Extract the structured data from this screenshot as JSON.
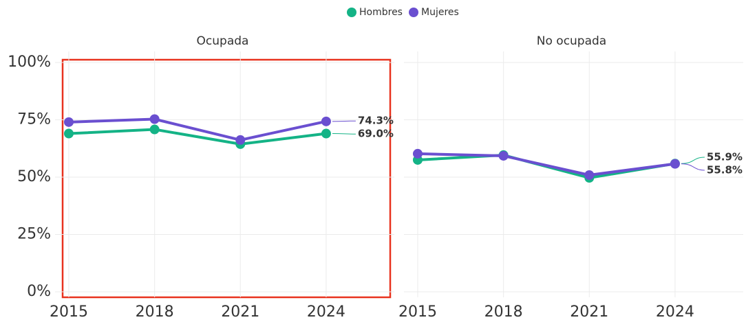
{
  "chart_data": [
    {
      "type": "line",
      "title": "Ocupada",
      "x": [
        2015,
        2018,
        2021,
        2024
      ],
      "xlim": [
        2014.76,
        2026.24
      ],
      "xticks": [
        2015,
        2018,
        2021,
        2024
      ],
      "ylim": [
        -2.4,
        101.8
      ],
      "yticks": [
        {
          "value": 0,
          "label": "0%"
        },
        {
          "value": 25,
          "label": "25%"
        },
        {
          "value": 50,
          "label": "50%"
        },
        {
          "value": 75,
          "label": "75%"
        },
        {
          "value": 100,
          "label": "100%"
        }
      ],
      "grid": true,
      "series": [
        {
          "name": "Hombres",
          "color": "#14b386",
          "values": [
            69.0,
            70.8,
            64.4,
            69.0
          ],
          "value_labels": [
            null,
            null,
            null,
            "69.0%"
          ]
        },
        {
          "name": "Mujeres",
          "color": "#6a4fd0",
          "values": [
            74.0,
            75.3,
            66.2,
            74.3
          ],
          "value_labels": [
            null,
            null,
            null,
            "74.3%"
          ]
        }
      ]
    },
    {
      "type": "line",
      "title": "No ocupada",
      "x": [
        2015,
        2018,
        2021,
        2024
      ],
      "xlim": [
        2014.76,
        2026.24
      ],
      "xticks": [
        2015,
        2018,
        2021,
        2024
      ],
      "ylim": [
        -2.4,
        101.8
      ],
      "yticks": [
        0,
        25,
        50,
        75,
        100
      ],
      "grid": true,
      "series": [
        {
          "name": "Hombres",
          "color": "#14b386",
          "values": [
            57.5,
            59.6,
            49.7,
            55.9
          ],
          "value_labels": [
            null,
            null,
            null,
            "55.9%"
          ]
        },
        {
          "name": "Mujeres",
          "color": "#6a4fd0",
          "values": [
            60.2,
            59.3,
            50.9,
            55.8
          ],
          "value_labels": [
            null,
            null,
            null,
            "55.8%"
          ]
        }
      ]
    }
  ]
}
